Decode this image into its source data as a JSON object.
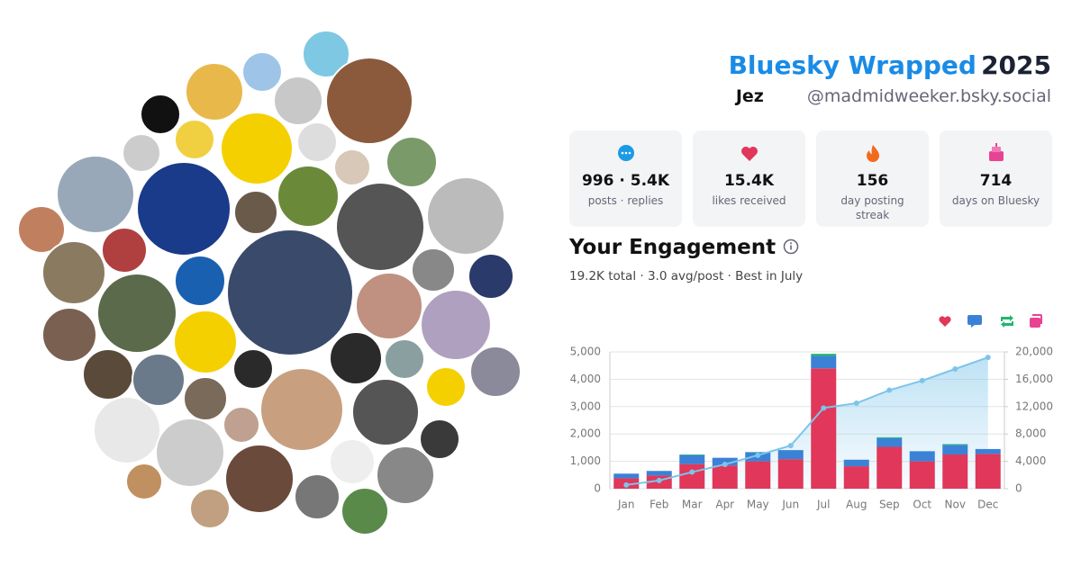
{
  "header": {
    "title": "Bluesky Wrapped",
    "year": "2025",
    "name": "Jez",
    "handle": "@madmidweeker.bsky.social"
  },
  "stats": [
    {
      "value": "996 · 5.4K",
      "label": "posts · replies"
    },
    {
      "value": "15.4K",
      "label": "likes received"
    },
    {
      "value": "156",
      "label": "day posting streak"
    },
    {
      "value": "714",
      "label": "days on Bluesky"
    }
  ],
  "engagement": {
    "title": "Your Engagement",
    "summary": "19.2K total · 3.0 avg/post · Best in July"
  },
  "chart_data": {
    "type": "bar",
    "stacked": true,
    "grid": true,
    "categories": [
      "Jan",
      "Feb",
      "Mar",
      "Apr",
      "May",
      "Jun",
      "Jul",
      "Aug",
      "Sep",
      "Oct",
      "Nov",
      "Dec"
    ],
    "series": [
      {
        "color": "#e0375a",
        "values": [
          380,
          480,
          900,
          850,
          1000,
          1080,
          4400,
          820,
          1530,
          1000,
          1250,
          1270
        ]
      },
      {
        "color": "#3b82d6",
        "values": [
          170,
          170,
          330,
          280,
          330,
          330,
          450,
          240,
          320,
          370,
          350,
          180
        ]
      },
      {
        "color": "#22b573",
        "values": [
          0,
          0,
          20,
          0,
          10,
          0,
          80,
          0,
          30,
          0,
          30,
          0
        ]
      },
      {
        "color": "#e84393",
        "values": [
          0,
          0,
          0,
          0,
          0,
          0,
          0,
          0,
          0,
          0,
          0,
          0
        ]
      },
      {
        "type": "line",
        "axis": "y2",
        "color": "#7cc4ea",
        "values": [
          550,
          1200,
          2430,
          3560,
          4890,
          6300,
          11800,
          12500,
          14400,
          15800,
          17500,
          19200
        ]
      }
    ],
    "ylim": [
      0,
      5000
    ],
    "yticks": [
      0,
      {
        "value": 1000,
        "label": "1,000"
      },
      {
        "value": 2000,
        "label": "2,000"
      },
      {
        "value": 3000,
        "label": "3,000"
      },
      {
        "value": 4000,
        "label": "4,000"
      },
      {
        "value": 5000,
        "label": "5,000"
      }
    ],
    "y2lim": [
      0,
      20000
    ],
    "y2ticks": [
      0,
      {
        "value": 4000,
        "label": "4,000"
      },
      {
        "value": 8000,
        "label": "8,000"
      },
      {
        "value": 12000,
        "label": "12,000"
      },
      {
        "value": 16000,
        "label": "16,000"
      },
      {
        "value": 20000,
        "label": "20,000"
      }
    ]
  }
}
